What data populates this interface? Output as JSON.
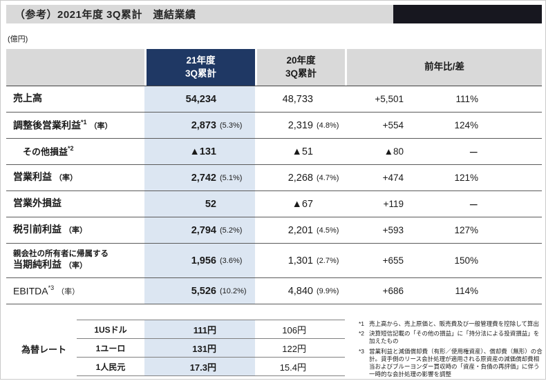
{
  "title": "（参考）2021年度 3Q累計　連結業績",
  "unit_label": "(億円)",
  "main_table": {
    "header": {
      "cur_line1": "21年度",
      "cur_line2": "3Q累計",
      "prev_line1": "20年度",
      "prev_line2": "3Q累計",
      "yoy": "前年比/差"
    },
    "rows": [
      {
        "label": "売上高",
        "cur": "54,234",
        "prev": "48,733",
        "diff": "+5,501",
        "pct": "111%"
      },
      {
        "label": "調整後営業利益",
        "sup": "*1",
        "rate_label": "（率）",
        "cur": "2,873",
        "cur_rate": "(5.3%)",
        "prev": "2,319",
        "prev_rate": "(4.8%)",
        "diff": "+554",
        "pct": "124%"
      },
      {
        "label": "その他損益",
        "sup": "*2",
        "cur": "▲131",
        "prev": "▲51",
        "diff": "▲80",
        "pct": "ー"
      },
      {
        "label": "営業利益",
        "rate_label": "（率）",
        "cur": "2,742",
        "cur_rate": "(5.1%)",
        "prev": "2,268",
        "prev_rate": "(4.7%)",
        "diff": "+474",
        "pct": "121%"
      },
      {
        "label": "営業外損益",
        "cur": "52",
        "prev": "▲67",
        "diff": "+119",
        "pct": "ー"
      },
      {
        "label": "税引前利益",
        "rate_label": "（率）",
        "cur": "2,794",
        "cur_rate": "(5.2%)",
        "prev": "2,201",
        "prev_rate": "(4.5%)",
        "diff": "+593",
        "pct": "127%"
      },
      {
        "label_top": "親会社の所有者に帰属する",
        "label": "当期純利益",
        "rate_label": "（率）",
        "cur": "1,956",
        "cur_rate": "(3.6%)",
        "prev": "1,301",
        "prev_rate": "(2.7%)",
        "diff": "+655",
        "pct": "150%"
      },
      {
        "label": "EBITDA",
        "sup": "*3",
        "rate_label": "（率）",
        "cur": "5,526",
        "cur_rate": "(10.2%)",
        "prev": "4,840",
        "prev_rate": "(9.9%)",
        "diff": "+686",
        "pct": "114%"
      }
    ]
  },
  "fx_table": {
    "label": "為替レート",
    "rows": [
      {
        "label": "1USドル",
        "cur": "111円",
        "prev": "106円"
      },
      {
        "label": "1ユーロ",
        "cur": "131円",
        "prev": "122円"
      },
      {
        "label": "1人民元",
        "cur": "17.3円",
        "prev": "15.4円"
      }
    ]
  },
  "footnotes": [
    {
      "marker": "*1",
      "text": "売上高から、売上原価と、販売費及び一般管理費を控除して算出"
    },
    {
      "marker": "*2",
      "text": "決算短信記載の「その他の損益」に「持分法による投資損益」を加えたもの"
    },
    {
      "marker": "*3",
      "text": "営業利益と減価償却費（有形／使用権資産）、償却費（無形）の合計。貸手側のリース会計処理が適用される原資産の減価償却費相当およびブルーヨンダー買収時の「資産・負債の再評価」に伴う一時的な会計処理の影響を調整"
    }
  ],
  "colors": {
    "header_navy": "#1f3864",
    "header_gray": "#d9d9d9",
    "highlight_blue": "#dce6f2",
    "title_bar_gray": "#d9d9d9",
    "title_bar_black": "#17171f"
  }
}
